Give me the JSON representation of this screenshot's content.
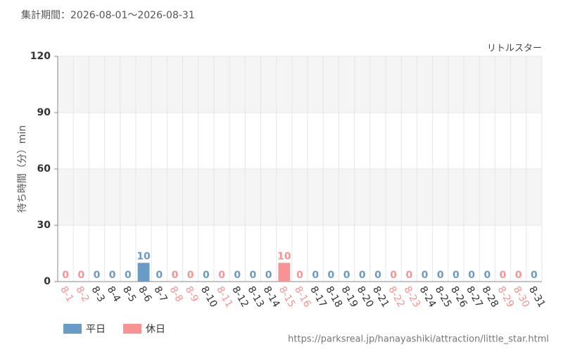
{
  "chart_data": {
    "type": "bar",
    "title": "集計期間：2026-08-01〜2026-08-31",
    "annotation": "リトルスター",
    "y_label": "待ち時間（分）min",
    "categories": [
      "8-1",
      "8-2",
      "8-3",
      "8-4",
      "8-5",
      "8-6",
      "8-7",
      "8-8",
      "8-9",
      "8-10",
      "8-11",
      "8-12",
      "8-13",
      "8-14",
      "8-15",
      "8-16",
      "8-17",
      "8-18",
      "8-19",
      "8-20",
      "8-21",
      "8-22",
      "8-23",
      "8-24",
      "8-25",
      "8-26",
      "8-27",
      "8-28",
      "8-29",
      "8-30",
      "8-31"
    ],
    "values": [
      0,
      0,
      0,
      0,
      0,
      10,
      0,
      0,
      0,
      0,
      0,
      0,
      0,
      0,
      10,
      0,
      0,
      0,
      0,
      0,
      0,
      0,
      0,
      0,
      0,
      0,
      0,
      0,
      0,
      0,
      0
    ],
    "colors": [
      "#f79393",
      "#f79393",
      "#6a9bc6",
      "#6a9bc6",
      "#6a9bc6",
      "#6a9bc6",
      "#6a9bc6",
      "#f79393",
      "#f79393",
      "#6a9bc6",
      "#f79393",
      "#6a9bc6",
      "#6a9bc6",
      "#6a9bc6",
      "#f79393",
      "#f79393",
      "#6a9bc6",
      "#6a9bc6",
      "#6a9bc6",
      "#6a9bc6",
      "#6a9bc6",
      "#f79393",
      "#f79393",
      "#6a9bc6",
      "#6a9bc6",
      "#6a9bc6",
      "#6a9bc6",
      "#6a9bc6",
      "#f79393",
      "#f79393",
      "#6a9bc6"
    ],
    "legend": [
      {
        "name": "平日",
        "color": "#6a9bc6"
      },
      {
        "name": "休日",
        "color": "#f79393"
      }
    ],
    "ylim": [
      0,
      120
    ],
    "yticks": [
      0,
      30,
      60,
      90,
      120
    ],
    "grid": true,
    "footer": "https://parksreal.jp/hanayashiki/attraction/little_star.html"
  }
}
